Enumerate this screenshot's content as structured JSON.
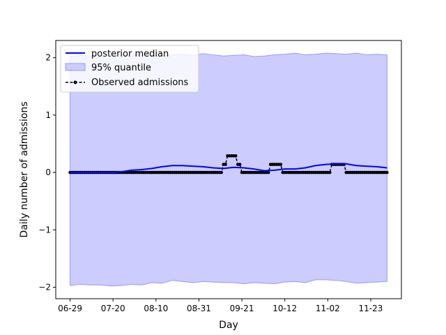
{
  "chart_data": {
    "type": "line",
    "title": "",
    "xlabel": "Day",
    "ylabel": "Daily number of admissions",
    "ylim": [
      -2.2,
      2.3
    ],
    "yticks": [
      -2,
      -1,
      0,
      1,
      2
    ],
    "ytick_labels": [
      "−2",
      "−1",
      "0",
      "1",
      "2"
    ],
    "xtick_labels": [
      "06-29",
      "07-20",
      "08-10",
      "08-31",
      "09-21",
      "10-12",
      "11-02",
      "11-23"
    ],
    "xtick_days": [
      0,
      21,
      42,
      63,
      84,
      105,
      126,
      147
    ],
    "x_range_days": [
      -7,
      162
    ],
    "grid": false,
    "legend_position": "top-left",
    "colors": {
      "median": "#0000ff",
      "band_fill": "#ccccff",
      "band_edge": "#9999ff",
      "observed": "#000000"
    },
    "series": [
      {
        "name": "posterior median",
        "kind": "line",
        "x": [
          0,
          10,
          20,
          25,
          30,
          35,
          40,
          45,
          50,
          55,
          60,
          65,
          70,
          75,
          80,
          85,
          90,
          95,
          100,
          105,
          110,
          115,
          120,
          125,
          130,
          135,
          140,
          145,
          150,
          155
        ],
        "values": [
          0.0,
          0.0,
          0.0,
          0.01,
          0.04,
          0.05,
          0.07,
          0.1,
          0.12,
          0.12,
          0.11,
          0.1,
          0.08,
          0.07,
          0.09,
          0.08,
          0.06,
          0.03,
          0.04,
          0.06,
          0.06,
          0.08,
          0.12,
          0.14,
          0.15,
          0.15,
          0.12,
          0.11,
          0.1,
          0.08
        ]
      },
      {
        "name": "95% quantile",
        "kind": "band",
        "x": [
          0,
          5,
          10,
          15,
          20,
          25,
          30,
          35,
          40,
          45,
          50,
          55,
          60,
          65,
          70,
          75,
          80,
          85,
          90,
          95,
          100,
          105,
          110,
          115,
          120,
          125,
          130,
          135,
          140,
          145,
          150,
          155
        ],
        "lower": [
          -1.97,
          -1.95,
          -1.96,
          -1.96,
          -1.98,
          -1.97,
          -1.95,
          -1.96,
          -1.92,
          -1.93,
          -1.88,
          -1.9,
          -1.92,
          -1.9,
          -1.91,
          -1.92,
          -1.92,
          -1.94,
          -1.92,
          -1.93,
          -1.94,
          -1.91,
          -1.9,
          -1.92,
          -1.87,
          -1.87,
          -1.88,
          -1.9,
          -1.93,
          -1.92,
          -1.91,
          -1.9
        ],
        "upper": [
          2.02,
          2.04,
          2.03,
          2.01,
          2.05,
          2.04,
          2.03,
          2.06,
          2.04,
          2.03,
          2.05,
          2.06,
          2.04,
          2.07,
          2.05,
          2.03,
          2.04,
          2.05,
          2.02,
          2.03,
          2.05,
          2.06,
          2.08,
          2.05,
          2.06,
          2.08,
          2.07,
          2.06,
          2.08,
          2.05,
          2.06,
          2.05
        ]
      },
      {
        "name": "Observed admissions",
        "kind": "points",
        "segments": [
          {
            "from": 0,
            "to": 74,
            "value": 0
          },
          {
            "from": 75,
            "to": 76,
            "value": 0.14
          },
          {
            "from": 77,
            "to": 81,
            "value": 0.29
          },
          {
            "from": 82,
            "to": 83,
            "value": 0.14
          },
          {
            "from": 84,
            "to": 97,
            "value": 0
          },
          {
            "from": 98,
            "to": 103,
            "value": 0.14
          },
          {
            "from": 104,
            "to": 127,
            "value": 0
          },
          {
            "from": 128,
            "to": 134,
            "value": 0.14
          },
          {
            "from": 135,
            "to": 155,
            "value": 0
          }
        ]
      }
    ]
  }
}
